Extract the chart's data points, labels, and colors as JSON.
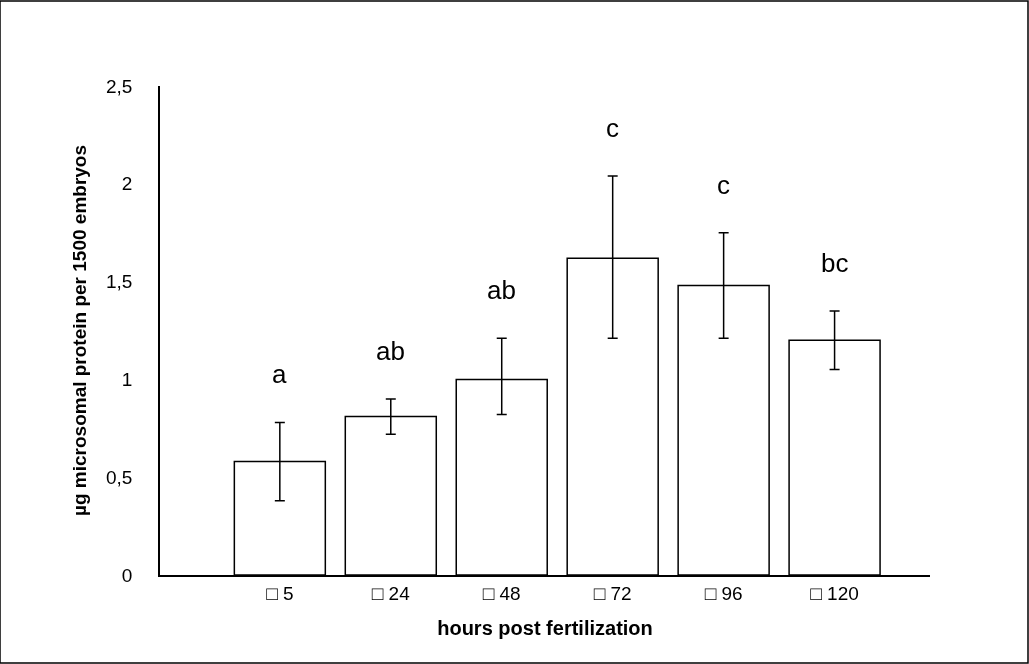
{
  "chart_data": {
    "type": "bar",
    "categories": [
      "□ 5",
      "□ 24",
      "□ 48",
      "□ 72",
      "□ 96",
      "□ 120"
    ],
    "values": [
      0.58,
      0.81,
      1.0,
      1.62,
      1.48,
      1.2
    ],
    "errors": [
      [
        0.38,
        0.78
      ],
      [
        0.72,
        0.9
      ],
      [
        0.82,
        1.21
      ],
      [
        1.21,
        2.04
      ],
      [
        1.21,
        1.75
      ],
      [
        1.05,
        1.35
      ]
    ],
    "color": "#ffffff",
    "xlabel": "hours post fertilization",
    "ylabel": "µg microsomal protein per 1500 embryos",
    "ylim": [
      0,
      2.5
    ],
    "yticks": [
      0,
      {
        "value": 0.5,
        "label": "0,5"
      },
      1,
      {
        "value": 1.5,
        "label": "1,5"
      },
      2,
      {
        "value": 2.5,
        "label": "2,5"
      }
    ],
    "annotations": [
      "a",
      "ab",
      "ab",
      "c",
      "c",
      "bc"
    ]
  }
}
